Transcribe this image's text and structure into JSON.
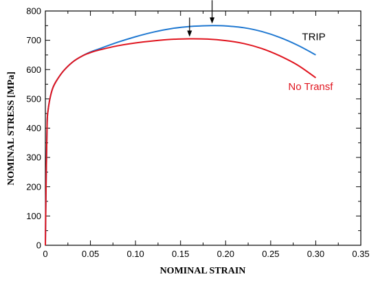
{
  "chart_data": {
    "type": "line",
    "title": "",
    "xlabel": "NOMINAL STRAIN",
    "ylabel": "NOMINAL STRESS [MPa]",
    "xlim": [
      0,
      0.35
    ],
    "ylim": [
      0,
      800
    ],
    "xticks": [
      "0",
      "0.05",
      "0.10",
      "0.15",
      "0.20",
      "0.25",
      "0.30",
      "0.35"
    ],
    "yticks": [
      "0",
      "100",
      "200",
      "300",
      "400",
      "500",
      "600",
      "700",
      "800"
    ],
    "grid": false,
    "series": [
      {
        "name": "TRIP",
        "color": "#1f78d1",
        "x": [
          0,
          0.001,
          0.002,
          0.003,
          0.005,
          0.008,
          0.012,
          0.02,
          0.03,
          0.04,
          0.05,
          0.06,
          0.08,
          0.1,
          0.12,
          0.14,
          0.16,
          0.185,
          0.2,
          0.22,
          0.24,
          0.26,
          0.28,
          0.3
        ],
        "y": [
          0,
          250,
          420,
          460,
          500,
          535,
          560,
          595,
          625,
          645,
          660,
          671,
          693,
          712,
          728,
          740,
          747,
          750,
          749,
          743,
          730,
          710,
          683,
          650
        ]
      },
      {
        "name": "No Transf",
        "color": "#e0141e",
        "x": [
          0,
          0.001,
          0.002,
          0.003,
          0.005,
          0.008,
          0.012,
          0.02,
          0.03,
          0.04,
          0.05,
          0.06,
          0.08,
          0.1,
          0.12,
          0.14,
          0.16,
          0.18,
          0.2,
          0.22,
          0.24,
          0.26,
          0.28,
          0.3
        ],
        "y": [
          0,
          250,
          420,
          460,
          500,
          535,
          560,
          595,
          625,
          645,
          658,
          667,
          681,
          691,
          698,
          703,
          705,
          704,
          699,
          689,
          672,
          647,
          615,
          572
        ]
      }
    ],
    "annotations": [
      {
        "type": "arrow",
        "x": 0.16,
        "y": 705
      },
      {
        "type": "arrow",
        "x": 0.185,
        "y": 750
      }
    ]
  }
}
